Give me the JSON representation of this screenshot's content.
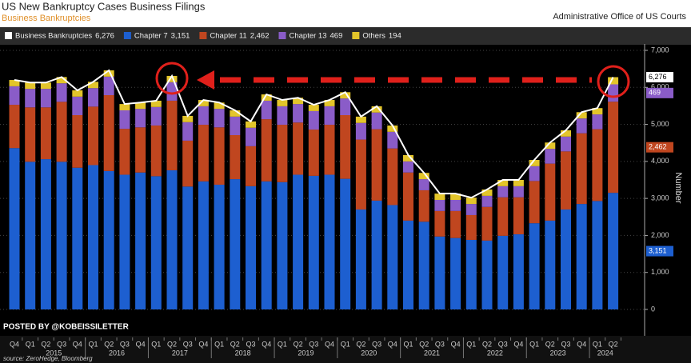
{
  "chart_data": {
    "type": "stacked_bar_line",
    "title": "US New Bankruptcy Cases Business Filings",
    "subtitle": "Business Bankruptcies",
    "source_org": "Administrative Office of US Courts",
    "watermark": "POSTED BY @KOBEISSILETTER",
    "source": "source: ZeroHedge, Bloomberg",
    "y_label": "Number",
    "categories": [
      "Q4",
      "Q1",
      "Q2",
      "Q3",
      "Q4",
      "Q1",
      "Q2",
      "Q3",
      "Q4",
      "Q1",
      "Q2",
      "Q3",
      "Q4",
      "Q1",
      "Q2",
      "Q3",
      "Q4",
      "Q1",
      "Q2",
      "Q3",
      "Q4",
      "Q1",
      "Q2",
      "Q3",
      "Q4",
      "Q1",
      "Q2",
      "Q3",
      "Q4",
      "Q1",
      "Q2",
      "Q3",
      "Q4",
      "Q1",
      "Q2",
      "Q3",
      "Q4",
      "Q1",
      "Q2"
    ],
    "years": [
      "2015",
      "2016",
      "2017",
      "2018",
      "2019",
      "2020",
      "2021",
      "2022",
      "2023",
      "2024"
    ],
    "line": {
      "name": "Business Bankruptcies",
      "last_label": "6,276",
      "color": "#ffffff",
      "values": [
        6200,
        6130,
        6130,
        6280,
        5920,
        6150,
        6460,
        5550,
        5590,
        5640,
        6310,
        5230,
        5660,
        5590,
        5380,
        5080,
        5810,
        5660,
        5720,
        5530,
        5660,
        5870,
        5210,
        5490,
        4970,
        4170,
        3690,
        3130,
        3130,
        3020,
        3240,
        3500,
        3500,
        4040,
        4510,
        4840,
        5330,
        5440,
        6276
      ]
    },
    "series": [
      {
        "name": "Chapter 7",
        "last_label": "3,151",
        "color": "#1d5fd0",
        "values": [
          4360,
          3990,
          4060,
          3990,
          3830,
          3900,
          3740,
          3640,
          3700,
          3600,
          3760,
          3320,
          3460,
          3370,
          3520,
          3330,
          3460,
          3440,
          3640,
          3610,
          3640,
          3530,
          2700,
          2940,
          2820,
          2400,
          2370,
          1970,
          1930,
          1880,
          1860,
          1990,
          2030,
          2330,
          2400,
          2700,
          2850,
          2930,
          3151
        ]
      },
      {
        "name": "Chapter 11",
        "last_label": "2,462",
        "color": "#c0461f",
        "values": [
          1170,
          1470,
          1400,
          1620,
          1420,
          1580,
          2050,
          1240,
          1220,
          1370,
          1880,
          1240,
          1530,
          1550,
          1190,
          1080,
          1680,
          1550,
          1410,
          1250,
          1350,
          1720,
          1890,
          1930,
          1530,
          1300,
          850,
          690,
          730,
          670,
          910,
          1040,
          1000,
          1140,
          1540,
          1570,
          1910,
          1940,
          2462
        ]
      },
      {
        "name": "Chapter 13",
        "last_label": "469",
        "color": "#8a5cc8",
        "values": [
          500,
          500,
          500,
          500,
          500,
          500,
          500,
          500,
          500,
          500,
          500,
          500,
          500,
          500,
          500,
          500,
          500,
          500,
          500,
          500,
          500,
          450,
          450,
          450,
          450,
          300,
          300,
          300,
          300,
          300,
          300,
          300,
          300,
          400,
          400,
          400,
          400,
          400,
          469
        ]
      },
      {
        "name": "Others",
        "last_label": "194",
        "color": "#e3c52a",
        "values": [
          170,
          170,
          170,
          170,
          170,
          170,
          170,
          170,
          170,
          170,
          170,
          170,
          170,
          170,
          170,
          170,
          170,
          170,
          170,
          170,
          170,
          170,
          170,
          170,
          170,
          170,
          170,
          170,
          170,
          170,
          170,
          170,
          170,
          170,
          170,
          170,
          170,
          170,
          194
        ]
      }
    ],
    "ylim": [
      0,
      7000
    ],
    "yticks": [
      0,
      {
        "value": 1000,
        "label": "1,000"
      },
      {
        "value": 2000,
        "label": "2,000"
      },
      {
        "value": 3000,
        "label": "3,000"
      },
      {
        "value": 4000,
        "label": "4,000"
      },
      {
        "value": 5000,
        "label": "5,000"
      },
      {
        "value": 6000,
        "label": "6,000"
      },
      {
        "value": 7000,
        "label": "7,000"
      }
    ],
    "grid": true
  }
}
